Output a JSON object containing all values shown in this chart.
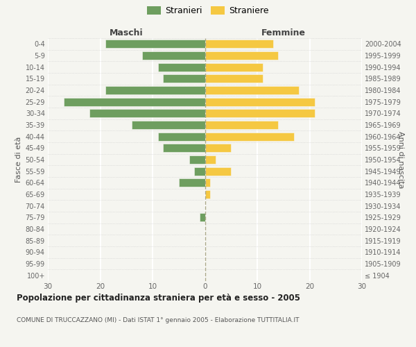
{
  "age_groups": [
    "100+",
    "95-99",
    "90-94",
    "85-89",
    "80-84",
    "75-79",
    "70-74",
    "65-69",
    "60-64",
    "55-59",
    "50-54",
    "45-49",
    "40-44",
    "35-39",
    "30-34",
    "25-29",
    "20-24",
    "15-19",
    "10-14",
    "5-9",
    "0-4"
  ],
  "birth_years": [
    "≤ 1904",
    "1905-1909",
    "1910-1914",
    "1915-1919",
    "1920-1924",
    "1925-1929",
    "1930-1934",
    "1935-1939",
    "1940-1944",
    "1945-1949",
    "1950-1954",
    "1955-1959",
    "1960-1964",
    "1965-1969",
    "1970-1974",
    "1975-1979",
    "1980-1984",
    "1985-1989",
    "1990-1994",
    "1995-1999",
    "2000-2004"
  ],
  "maschi": [
    0,
    0,
    0,
    0,
    0,
    1,
    0,
    0,
    5,
    2,
    3,
    8,
    9,
    14,
    22,
    27,
    19,
    8,
    9,
    12,
    19
  ],
  "femmine": [
    0,
    0,
    0,
    0,
    0,
    0,
    0,
    1,
    1,
    5,
    2,
    5,
    17,
    14,
    21,
    21,
    18,
    11,
    11,
    14,
    13
  ],
  "color_maschi": "#6e9e5f",
  "color_femmine": "#f5c842",
  "title": "Popolazione per cittadinanza straniera per età e sesso - 2005",
  "subtitle": "COMUNE DI TRUCCAZZANO (MI) - Dati ISTAT 1° gennaio 2005 - Elaborazione TUTTITALIA.IT",
  "xlabel_left": "Maschi",
  "xlabel_right": "Femmine",
  "ylabel_left": "Fasce di età",
  "ylabel_right": "Anni di nascita",
  "legend_maschi": "Stranieri",
  "legend_femmine": "Straniere",
  "xlim": 30,
  "background_color": "#f5f5f0",
  "grid_color": "#ffffff",
  "dotted_color": "#cccccc"
}
